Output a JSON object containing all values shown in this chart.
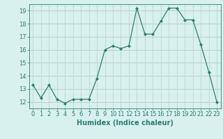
{
  "x": [
    0,
    1,
    2,
    3,
    4,
    5,
    6,
    7,
    8,
    9,
    10,
    11,
    12,
    13,
    14,
    15,
    16,
    17,
    18,
    19,
    20,
    21,
    22,
    23
  ],
  "y": [
    13.3,
    12.3,
    13.3,
    12.2,
    11.9,
    12.2,
    12.2,
    12.2,
    13.8,
    16.0,
    16.3,
    16.1,
    16.3,
    19.2,
    17.2,
    17.2,
    18.2,
    19.2,
    19.2,
    18.3,
    18.3,
    16.4,
    14.3,
    12.0
  ],
  "line_color": "#2d7d6e",
  "marker": "D",
  "marker_size": 2.0,
  "bg_color": "#d8f0ee",
  "grid_color": "#b8d8d4",
  "grid_color_minor": "#e8c8c8",
  "xlabel": "Humidex (Indice chaleur)",
  "xlim": [
    -0.5,
    23.5
  ],
  "ylim": [
    11.5,
    19.5
  ],
  "yticks": [
    12,
    13,
    14,
    15,
    16,
    17,
    18,
    19
  ],
  "xticks": [
    0,
    1,
    2,
    3,
    4,
    5,
    6,
    7,
    8,
    9,
    10,
    11,
    12,
    13,
    14,
    15,
    16,
    17,
    18,
    19,
    20,
    21,
    22,
    23
  ],
  "tick_color": "#2d7d6e",
  "label_color": "#2d7d6e",
  "xlabel_fontsize": 7,
  "tick_fontsize": 6
}
